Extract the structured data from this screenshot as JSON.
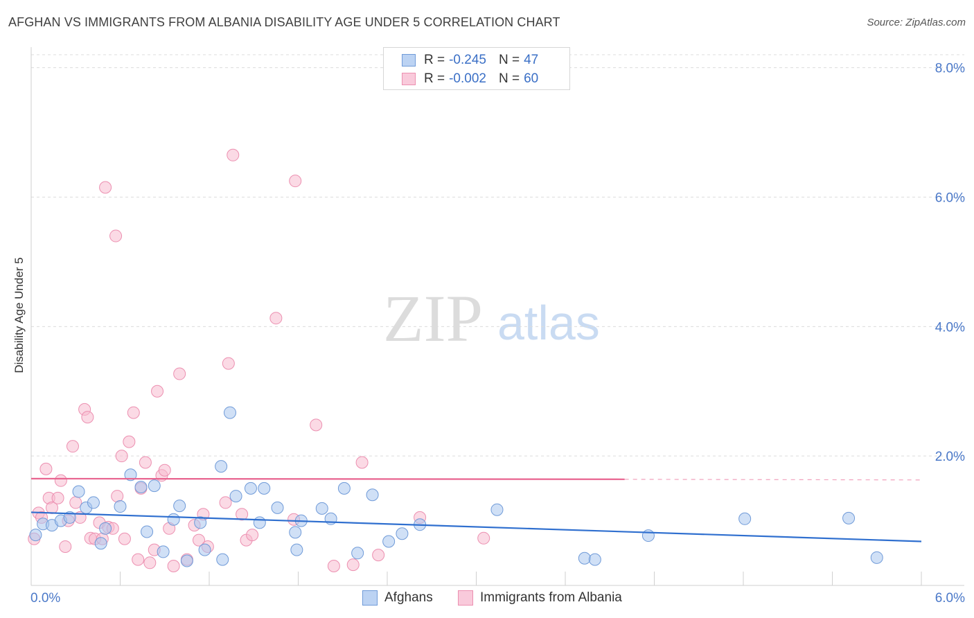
{
  "header": {
    "title": "AFGHAN VS IMMIGRANTS FROM ALBANIA DISABILITY AGE UNDER 5 CORRELATION CHART",
    "source": "Source: ZipAtlas.com"
  },
  "watermark": {
    "zip": "ZIP",
    "atlas": "atlas"
  },
  "legend": {
    "rows": [
      {
        "r_label": "R =",
        "r_value": "-0.245",
        "n_label": "N =",
        "n_value": "47"
      },
      {
        "r_label": "R =",
        "r_value": "-0.002",
        "n_label": "N =",
        "n_value": "60"
      }
    ]
  },
  "chart_data": {
    "type": "scatter",
    "title": "AFGHAN VS IMMIGRANTS FROM ALBANIA DISABILITY AGE UNDER 5 CORRELATION CHART",
    "xlabel": "",
    "ylabel": "Disability Age Under 5",
    "xlim": [
      0,
      6
    ],
    "ylim": [
      0,
      8.2
    ],
    "x_tick_labels": [
      "0.0%",
      "6.0%"
    ],
    "y_ticks": [
      {
        "value": 2,
        "label": "2.0%"
      },
      {
        "value": 4,
        "label": "4.0%"
      },
      {
        "value": 6,
        "label": "6.0%"
      },
      {
        "value": 8,
        "label": "8.0%"
      }
    ],
    "grid": "horizontal dashed",
    "legend_position": "top-center",
    "colors": {
      "afghans_fill": "#a9c6ef",
      "afghans_stroke": "#6f9ad8",
      "afghans_line": "#2f6fcf",
      "albania_fill": "#f7bcd0",
      "albania_stroke": "#ec8fb0",
      "albania_line": "#e8638f"
    },
    "series": [
      {
        "name": "Afghans",
        "r": -0.245,
        "n": 47,
        "trend": {
          "x": [
            0,
            6
          ],
          "y": [
            1.13,
            0.68
          ]
        },
        "points": [
          [
            0.03,
            0.78
          ],
          [
            0.08,
            0.95
          ],
          [
            0.14,
            0.93
          ],
          [
            0.2,
            1.0
          ],
          [
            0.26,
            1.05
          ],
          [
            0.32,
            1.45
          ],
          [
            0.37,
            1.2
          ],
          [
            0.42,
            1.28
          ],
          [
            0.47,
            0.65
          ],
          [
            0.5,
            0.88
          ],
          [
            0.6,
            1.22
          ],
          [
            0.67,
            1.71
          ],
          [
            0.74,
            1.52
          ],
          [
            0.78,
            0.83
          ],
          [
            0.83,
            1.54
          ],
          [
            0.89,
            0.52
          ],
          [
            0.96,
            1.02
          ],
          [
            1.0,
            1.23
          ],
          [
            1.05,
            0.38
          ],
          [
            1.14,
            0.97
          ],
          [
            1.17,
            0.55
          ],
          [
            1.28,
            1.84
          ],
          [
            1.29,
            0.4
          ],
          [
            1.34,
            2.67
          ],
          [
            1.38,
            1.38
          ],
          [
            1.48,
            1.5
          ],
          [
            1.54,
            0.97
          ],
          [
            1.57,
            1.5
          ],
          [
            1.66,
            1.2
          ],
          [
            1.78,
            0.82
          ],
          [
            1.79,
            0.55
          ],
          [
            1.82,
            1.0
          ],
          [
            1.96,
            1.19
          ],
          [
            2.02,
            1.03
          ],
          [
            2.11,
            1.5
          ],
          [
            2.2,
            0.5
          ],
          [
            2.3,
            1.4
          ],
          [
            2.41,
            0.68
          ],
          [
            2.5,
            0.8
          ],
          [
            2.62,
            0.94
          ],
          [
            3.14,
            1.17
          ],
          [
            3.73,
            0.42
          ],
          [
            3.8,
            0.4
          ],
          [
            4.16,
            0.77
          ],
          [
            4.81,
            1.03
          ],
          [
            5.51,
            1.04
          ],
          [
            5.7,
            0.43
          ]
        ]
      },
      {
        "name": "Immigrants from Albania",
        "r": -0.002,
        "n": 60,
        "trend": {
          "x": [
            0,
            4.0
          ],
          "y": [
            1.65,
            1.64
          ]
        },
        "trend_dashed": {
          "x": [
            4.0,
            6
          ],
          "y": [
            1.64,
            1.63
          ]
        },
        "points": [
          [
            0.02,
            0.72
          ],
          [
            0.05,
            1.12
          ],
          [
            0.07,
            1.05
          ],
          [
            0.1,
            1.8
          ],
          [
            0.12,
            1.35
          ],
          [
            0.14,
            1.2
          ],
          [
            0.18,
            1.35
          ],
          [
            0.2,
            1.62
          ],
          [
            0.23,
            0.6
          ],
          [
            0.25,
            1.0
          ],
          [
            0.28,
            2.15
          ],
          [
            0.3,
            1.28
          ],
          [
            0.33,
            1.05
          ],
          [
            0.36,
            2.72
          ],
          [
            0.38,
            2.6
          ],
          [
            0.4,
            0.73
          ],
          [
            0.43,
            0.72
          ],
          [
            0.46,
            0.97
          ],
          [
            0.48,
            0.72
          ],
          [
            0.5,
            6.15
          ],
          [
            0.52,
            0.9
          ],
          [
            0.55,
            0.88
          ],
          [
            0.57,
            5.4
          ],
          [
            0.58,
            1.38
          ],
          [
            0.61,
            2.0
          ],
          [
            0.63,
            0.72
          ],
          [
            0.66,
            2.22
          ],
          [
            0.69,
            2.67
          ],
          [
            0.72,
            0.4
          ],
          [
            0.74,
            1.5
          ],
          [
            0.77,
            1.9
          ],
          [
            0.8,
            0.35
          ],
          [
            0.83,
            0.55
          ],
          [
            0.85,
            3.0
          ],
          [
            0.88,
            1.7
          ],
          [
            0.9,
            1.78
          ],
          [
            0.93,
            0.88
          ],
          [
            0.96,
            0.3
          ],
          [
            1.0,
            3.27
          ],
          [
            1.05,
            0.4
          ],
          [
            1.1,
            0.93
          ],
          [
            1.13,
            0.7
          ],
          [
            1.16,
            1.1
          ],
          [
            1.19,
            0.6
          ],
          [
            1.31,
            1.28
          ],
          [
            1.33,
            3.43
          ],
          [
            1.36,
            6.65
          ],
          [
            1.42,
            1.1
          ],
          [
            1.45,
            0.7
          ],
          [
            1.49,
            0.78
          ],
          [
            1.65,
            4.13
          ],
          [
            1.77,
            1.02
          ],
          [
            1.78,
            6.25
          ],
          [
            1.92,
            2.48
          ],
          [
            2.04,
            0.3
          ],
          [
            2.17,
            0.32
          ],
          [
            2.23,
            1.9
          ],
          [
            2.34,
            0.47
          ],
          [
            2.62,
            1.05
          ],
          [
            3.05,
            0.73
          ]
        ]
      }
    ]
  },
  "bottom_legend": {
    "items": [
      "Afghans",
      "Immigrants from Albania"
    ]
  }
}
